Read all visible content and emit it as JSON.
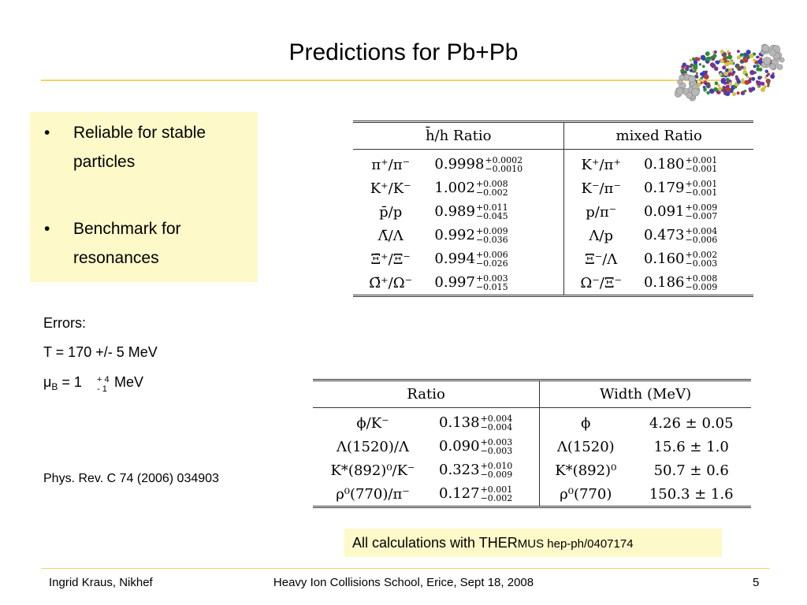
{
  "title": "Predictions for Pb+Pb",
  "bullets": [
    "Reliable for stable particles",
    "Benchmark for resonances"
  ],
  "bullet_symbol": "•",
  "errors": {
    "heading": "Errors:",
    "temperature": "T = 170 +/- 5 MeV",
    "mu_symbol": "μ",
    "mu_subscript": "B",
    "mu_equals": " = 1 ",
    "mu_plus": "+ 4",
    "mu_minus": "- 1",
    "mu_unit": "MeV"
  },
  "reference": "Phys. Rev. C 74 (2006) 034903",
  "table1": {
    "header_left": "h̄/h Ratio",
    "header_right": "mixed Ratio",
    "rows": [
      {
        "l_ratio": "π⁺/π⁻",
        "l_val": "0.9998",
        "l_up": "+0.0002",
        "l_dn": "−0.0010",
        "r_ratio": "K⁺/π⁺",
        "r_val": "0.180",
        "r_up": "+0.001",
        "r_dn": "−0.001"
      },
      {
        "l_ratio": "K⁺/K⁻",
        "l_val": "1.002",
        "l_up": "+0.008",
        "l_dn": "−0.002",
        "r_ratio": "K⁻/π⁻",
        "r_val": "0.179",
        "r_up": "+0.001",
        "r_dn": "−0.001"
      },
      {
        "l_ratio": "p̄/p",
        "l_val": "0.989",
        "l_up": "+0.011",
        "l_dn": "−0.045",
        "r_ratio": "p/π⁻",
        "r_val": "0.091",
        "r_up": "+0.009",
        "r_dn": "−0.007"
      },
      {
        "l_ratio": "Λ̄/Λ",
        "l_val": "0.992",
        "l_up": "+0.009",
        "l_dn": "−0.036",
        "r_ratio": "Λ/p",
        "r_val": "0.473",
        "r_up": "+0.004",
        "r_dn": "−0.006"
      },
      {
        "l_ratio": "Ξ̄⁺/Ξ⁻",
        "l_val": "0.994",
        "l_up": "+0.006",
        "l_dn": "−0.026",
        "r_ratio": "Ξ⁻/Λ",
        "r_val": "0.160",
        "r_up": "+0.002",
        "r_dn": "−0.003"
      },
      {
        "l_ratio": "Ω̄⁺/Ω⁻",
        "l_val": "0.997",
        "l_up": "+0.003",
        "l_dn": "−0.015",
        "r_ratio": "Ω⁻/Ξ⁻",
        "r_val": "0.186",
        "r_up": "+0.008",
        "r_dn": "−0.009"
      }
    ]
  },
  "table2": {
    "header_left": "Ratio",
    "header_right": "Width (MeV)",
    "rows": [
      {
        "ratio": "ϕ/K⁻",
        "val": "0.138",
        "up": "+0.004",
        "dn": "−0.004",
        "particle": "ϕ",
        "width": "4.26 ± 0.05"
      },
      {
        "ratio": "Λ(1520)/Λ",
        "val": "0.090",
        "up": "+0.003",
        "dn": "−0.003",
        "particle": "Λ(1520)",
        "width": "15.6 ± 1.0"
      },
      {
        "ratio": "K*(892)⁰/K⁻",
        "val": "0.323",
        "up": "+0.010",
        "dn": "−0.009",
        "particle": "K*(892)⁰",
        "width": "50.7 ± 0.6"
      },
      {
        "ratio": "ρ⁰(770)/π⁻",
        "val": "0.127",
        "up": "+0.001",
        "dn": "−0.002",
        "particle": "ρ⁰(770)",
        "width": "150.3 ± 1.6"
      }
    ]
  },
  "note": {
    "main": "All calculations with THER",
    "small": "MUS",
    "rest": " hep-ph/0407174"
  },
  "footer": {
    "left": "Ingrid Kraus, Nikhef",
    "center": "Heavy Ion Collisions School, Erice, Sept 18, 2008",
    "page": "5"
  },
  "colors": {
    "accent_line": "#f2d36b",
    "box_fill": "#fdf9c9"
  }
}
